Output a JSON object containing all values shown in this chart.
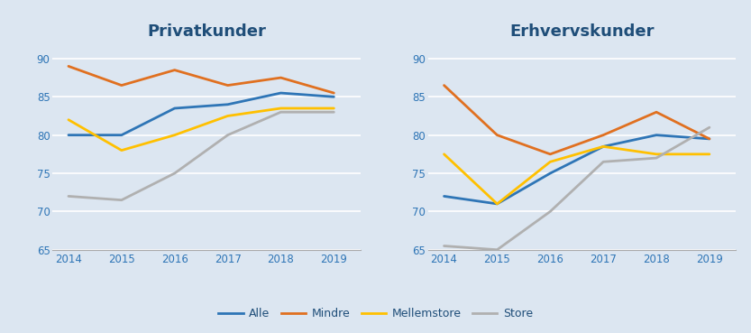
{
  "years": [
    2014,
    2015,
    2016,
    2017,
    2018,
    2019
  ],
  "privat": {
    "title": "Privatkunder",
    "Alle": [
      80,
      80,
      83.5,
      84,
      85.5,
      85
    ],
    "Mindre": [
      89,
      86.5,
      88.5,
      86.5,
      87.5,
      85.5
    ],
    "Mellemstore": [
      82,
      78,
      80,
      82.5,
      83.5,
      83.5
    ],
    "Store": [
      72,
      71.5,
      75,
      80,
      83,
      83
    ]
  },
  "erhverv": {
    "title": "Erhvervskunder",
    "Alle": [
      72,
      71,
      75,
      78.5,
      80,
      79.5
    ],
    "Mindre": [
      86.5,
      80,
      77.5,
      80,
      83,
      79.5
    ],
    "Mellemstore": [
      77.5,
      71,
      76.5,
      78.5,
      77.5,
      77.5
    ],
    "Store": [
      65.5,
      65,
      70,
      76.5,
      77,
      81
    ]
  },
  "colors": {
    "Alle": "#2e75b6",
    "Mindre": "#e07020",
    "Mellemstore": "#ffc000",
    "Store": "#b0b0b0"
  },
  "legend_labels": [
    "Alle",
    "Mindre",
    "Mellemstore",
    "Store"
  ],
  "ylim": [
    65,
    92
  ],
  "yticks": [
    65,
    70,
    75,
    80,
    85,
    90
  ],
  "title_color": "#1f4e79",
  "title_fontsize": 13,
  "tick_color": "#2e75b6",
  "linewidth": 2.0,
  "background_color": "#dce6f1",
  "plot_bg_color": "#dce6f1",
  "grid_color": "#ffffff",
  "grid_linewidth": 1.2,
  "bottom_spine_color": "#aaaaaa"
}
